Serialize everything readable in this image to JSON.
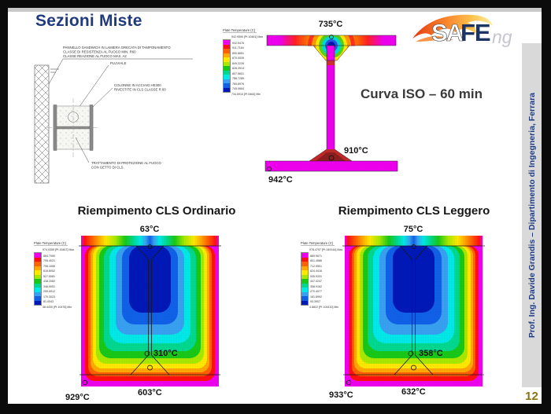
{
  "slide": {
    "title": "Sezioni Miste",
    "curve_label": "Curva ISO – 60 min",
    "page_number": "12",
    "sidebar_text": "Prof. Ing. Davide Grandis – Dipartimento di Ingegneria, Ferrara"
  },
  "logo": {
    "part_sa": "SA",
    "part_fe": "FE",
    "part_ng": "ng"
  },
  "drawing": {
    "panel_note_line1": "PANNELLO SANDWICH IN LAMIERA GRECATA DI TAMPONAMENTO",
    "panel_note_line2": "CLASSE DI RESISTENZA AL FUOCO MIN. R60",
    "panel_note_line3": "CLASSE REAZIONE AL FUOCO MAX. A2",
    "pluviale_label": "PLUVIALE",
    "column_note_line1": "COLONNE IN ACCIAIO HE300",
    "column_note_line2": "RIVESTITE IN CLS CLASSE R 60",
    "treatment_note_line1": "TRATTAMENTO DI PROTEZIONE AL FUOCO",
    "treatment_note_line2": "CON GETTO DI CLS."
  },
  "colors": {
    "title_navy": "#1f3b7e",
    "page_number_gold": "#8a7214",
    "sidebar_bg": "#d9d9d9",
    "heat_palette": [
      "#ee00ee",
      "#ff1010",
      "#ff6000",
      "#ffa800",
      "#ffe800",
      "#a8e800",
      "#18c818",
      "#00d890",
      "#00e8e8",
      "#38a0f0",
      "#1060e8",
      "#0018b8"
    ]
  },
  "chart_data": [
    {
      "id": "steel-ibeam-iso60",
      "type": "heatmap",
      "title": "Curva ISO – 60 min",
      "legend_title": "Plate  Temperature (C)",
      "legend_max": "942.9590 [Pt 10461] Max",
      "legend_ticks": [
        "932.5476",
        "911.7164",
        "890.8851",
        "870.0539",
        "849.2226",
        "828.3914",
        "807.5601",
        "786.7289",
        "765.8976",
        "745.0664"
      ],
      "legend_min": "734.5910 [Pt 5464] Min",
      "point_labels": [
        {
          "label": "735°C",
          "location": "top-flange-center"
        },
        {
          "label": "910°C",
          "location": "web-bottom-flange-junction"
        },
        {
          "label": "942°C",
          "location": "bottom-flange-edge"
        }
      ]
    },
    {
      "id": "riempimento-cls-ordinario",
      "type": "heatmap",
      "title": "Riempimento CLS Ordinario",
      "legend_title": "Plate  Temperature (C)",
      "legend_max": "974.0355 [Pt 15467] Max",
      "legend_ticks": [
        "884.7090",
        "795.4021",
        "706.1056",
        "616.8052",
        "527.5081",
        "438.2082",
        "348.9051",
        "259.6012",
        "170.3023",
        "81.0043"
      ],
      "legend_min": "38.4430 [Pt 10476] Min",
      "point_labels": [
        {
          "label": "63°C",
          "location": "top-center"
        },
        {
          "label": "310°C",
          "location": "web-bottom"
        },
        {
          "label": "603°C",
          "location": "bottom-flange-center"
        },
        {
          "label": "929°C",
          "location": "bottom-corner"
        }
      ]
    },
    {
      "id": "riempimento-cls-leggero",
      "type": "heatmap",
      "title": "Riempimento CLS Leggero",
      "legend_title": "Plate  Temperature (C)",
      "legend_max": "978.4757 [Pt 349144] Max",
      "legend_ticks": [
        "889.9671",
        "801.4586",
        "712.9501",
        "624.4416",
        "535.9331",
        "447.4247",
        "358.9162",
        "270.4077",
        "181.8992",
        "93.3907"
      ],
      "legend_min": "4.8822 [Pt 104410] Min",
      "point_labels": [
        {
          "label": "75°C",
          "location": "top-center"
        },
        {
          "label": "358°C",
          "location": "web-bottom"
        },
        {
          "label": "632°C",
          "location": "bottom-flange-center"
        },
        {
          "label": "933°C",
          "location": "bottom-corner"
        }
      ]
    }
  ]
}
